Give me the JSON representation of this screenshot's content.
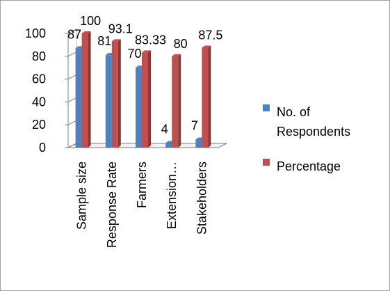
{
  "chart_data": {
    "type": "bar",
    "style": "3d-clustered-column",
    "title": "",
    "xlabel": "",
    "ylabel": "",
    "categories": [
      "Sample size",
      "Response Rate",
      "Farmers",
      "Extension…",
      "Stakeholders"
    ],
    "series": [
      {
        "name": "No. of Respondents",
        "color": "#4f81bd",
        "values": [
          87,
          81,
          70,
          4,
          7
        ],
        "labels": [
          "87",
          "81",
          "70",
          "4",
          "7"
        ]
      },
      {
        "name": "Percentage",
        "color": "#c0504d",
        "values": [
          100,
          93.1,
          83.33,
          80,
          87.5
        ],
        "labels": [
          "100",
          "93.1",
          "83.33",
          "80",
          "87.5"
        ]
      }
    ],
    "ylim": [
      0,
      100
    ],
    "yticks": [
      0,
      20,
      40,
      60,
      80,
      100
    ],
    "grid": false,
    "legend_position": "right"
  }
}
